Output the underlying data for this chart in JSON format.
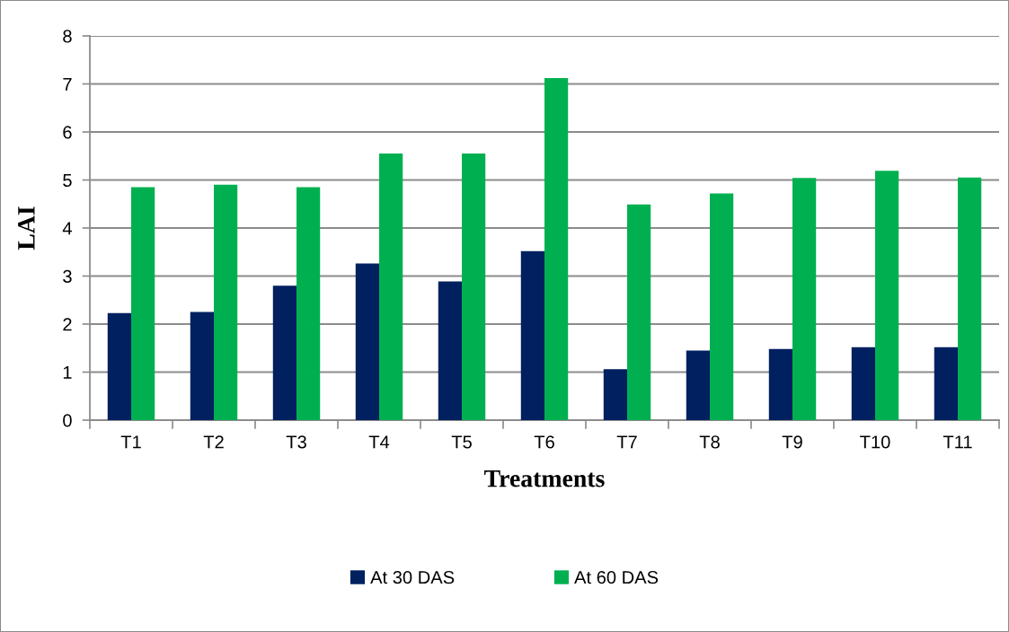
{
  "chart_data": {
    "type": "bar",
    "xlabel": "Treatments",
    "ylabel": "LAI",
    "categories": [
      "T1",
      "T2",
      "T3",
      "T4",
      "T5",
      "T6",
      "T7",
      "T8",
      "T9",
      "T10",
      "T11"
    ],
    "series": [
      {
        "name": "At 30 DAS",
        "color": "#002060",
        "values": [
          2.23,
          2.25,
          2.8,
          3.26,
          2.89,
          3.52,
          1.06,
          1.45,
          1.48,
          1.52,
          1.52
        ]
      },
      {
        "name": "At 60 DAS",
        "color": "#00b050",
        "values": [
          4.85,
          4.9,
          4.85,
          5.55,
          5.55,
          7.12,
          4.49,
          4.72,
          5.04,
          5.19,
          5.05
        ]
      }
    ],
    "ylim": [
      0,
      8
    ],
    "yticks": [
      0,
      1,
      2,
      3,
      4,
      5,
      6,
      7,
      8
    ],
    "grid": "y",
    "legend": "bottom"
  }
}
